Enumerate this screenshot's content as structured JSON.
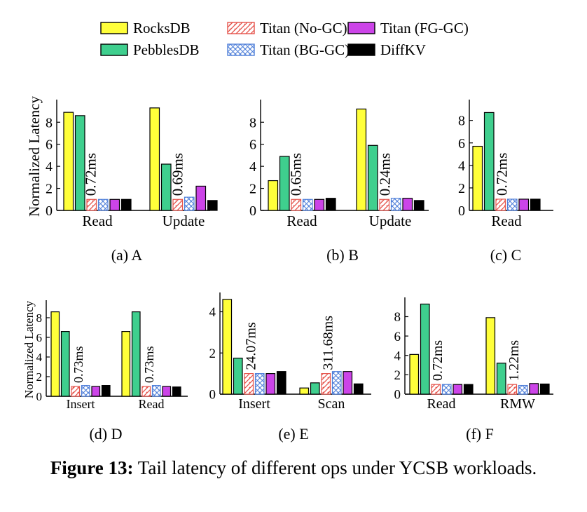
{
  "legend": [
    {
      "name": "RocksDB",
      "key": "rocks"
    },
    {
      "name": "PebblesDB",
      "key": "pebbles"
    },
    {
      "name": "Titan (No-GC)",
      "key": "nogc"
    },
    {
      "name": "Titan (BG-GC)",
      "key": "bggc"
    },
    {
      "name": "Titan (FG-GC)",
      "key": "fggc"
    },
    {
      "name": "DiffKV",
      "key": "diffkv"
    }
  ],
  "colors": {
    "rocks": "#ffff3a",
    "pebbles": "#3fcf8e",
    "nogc": "#e5534b",
    "bggc": "#4f7fd9",
    "fggc": "#cc44e8",
    "diffkv": "#000000"
  },
  "figure_caption": {
    "label": "Figure 13:",
    "text": " Tail latency of different ops under YCSB workloads."
  },
  "chart_data": [
    {
      "type": "bar",
      "caption": "(a)  A",
      "ylabel": "Normalized Latency",
      "ylim": [
        0,
        9.8
      ],
      "yticks": [
        0,
        2,
        4,
        6,
        8
      ],
      "categories": [
        "Read",
        "Update"
      ],
      "series": [
        {
          "name": "RocksDB",
          "values": [
            8.9,
            9.3
          ]
        },
        {
          "name": "PebblesDB",
          "values": [
            8.6,
            4.2
          ]
        },
        {
          "name": "Titan (No-GC)",
          "values": [
            1.0,
            1.0
          ]
        },
        {
          "name": "Titan (BG-GC)",
          "values": [
            1.0,
            1.2
          ]
        },
        {
          "name": "Titan (FG-GC)",
          "values": [
            1.0,
            2.2
          ]
        },
        {
          "name": "DiffKV",
          "values": [
            1.0,
            0.9
          ]
        }
      ],
      "annotations": [
        "0.72ms",
        "0.69ms"
      ]
    },
    {
      "type": "bar",
      "caption": "(b)  B",
      "ylabel": "",
      "ylim": [
        0,
        9.8
      ],
      "yticks": [
        0,
        2,
        4,
        6,
        8
      ],
      "categories": [
        "Read",
        "Update"
      ],
      "series": [
        {
          "name": "RocksDB",
          "values": [
            2.7,
            9.2
          ]
        },
        {
          "name": "PebblesDB",
          "values": [
            4.9,
            5.9
          ]
        },
        {
          "name": "Titan (No-GC)",
          "values": [
            1.0,
            1.0
          ]
        },
        {
          "name": "Titan (BG-GC)",
          "values": [
            1.0,
            1.1
          ]
        },
        {
          "name": "Titan (FG-GC)",
          "values": [
            1.0,
            1.1
          ]
        },
        {
          "name": "DiffKV",
          "values": [
            1.1,
            0.9
          ]
        }
      ],
      "annotations": [
        "0.65ms",
        "0.24ms"
      ]
    },
    {
      "type": "bar",
      "caption": "(c)  C",
      "ylabel": "",
      "ylim": [
        0,
        9.6
      ],
      "yticks": [
        0,
        2,
        4,
        6,
        8
      ],
      "categories": [
        "Read"
      ],
      "series": [
        {
          "name": "RocksDB",
          "values": [
            5.7
          ]
        },
        {
          "name": "PebblesDB",
          "values": [
            8.7
          ]
        },
        {
          "name": "Titan (No-GC)",
          "values": [
            1.0
          ]
        },
        {
          "name": "Titan (BG-GC)",
          "values": [
            1.0
          ]
        },
        {
          "name": "Titan (FG-GC)",
          "values": [
            1.0
          ]
        },
        {
          "name": "DiffKV",
          "values": [
            1.0
          ]
        }
      ],
      "annotations": [
        "0.72ms"
      ]
    },
    {
      "type": "bar",
      "caption": "(d)  D",
      "ylabel": "Normalized Latency",
      "ylim": [
        0,
        9.5
      ],
      "yticks": [
        0,
        2,
        4,
        6,
        8
      ],
      "categories": [
        "Insert",
        "Read"
      ],
      "series": [
        {
          "name": "RocksDB",
          "values": [
            8.6,
            6.6
          ]
        },
        {
          "name": "PebblesDB",
          "values": [
            6.6,
            8.6
          ]
        },
        {
          "name": "Titan (No-GC)",
          "values": [
            1.0,
            1.0
          ]
        },
        {
          "name": "Titan (BG-GC)",
          "values": [
            1.1,
            1.1
          ]
        },
        {
          "name": "Titan (FG-GC)",
          "values": [
            1.0,
            1.0
          ]
        },
        {
          "name": "DiffKV",
          "values": [
            1.1,
            0.95
          ]
        }
      ],
      "annotations": [
        "0.73ms",
        "0.73ms"
      ]
    },
    {
      "type": "bar",
      "caption": "(e)  E",
      "ylabel": "",
      "ylim": [
        0,
        4.8
      ],
      "yticks": [
        0,
        2,
        4
      ],
      "categories": [
        "Insert",
        "Scan"
      ],
      "series": [
        {
          "name": "RocksDB",
          "values": [
            4.6,
            0.3
          ]
        },
        {
          "name": "PebblesDB",
          "values": [
            1.75,
            0.55
          ]
        },
        {
          "name": "Titan (No-GC)",
          "values": [
            1.0,
            1.0
          ]
        },
        {
          "name": "Titan (BG-GC)",
          "values": [
            1.0,
            1.1
          ]
        },
        {
          "name": "Titan (FG-GC)",
          "values": [
            1.0,
            1.1
          ]
        },
        {
          "name": "DiffKV",
          "values": [
            1.1,
            0.5
          ]
        }
      ],
      "annotations": [
        "24.07ms",
        "311.68ms"
      ]
    },
    {
      "type": "bar",
      "caption": "(f)  F",
      "ylabel": "",
      "ylim": [
        0,
        9.7
      ],
      "yticks": [
        0,
        2,
        4,
        6,
        8
      ],
      "categories": [
        "Read",
        "RMW"
      ],
      "series": [
        {
          "name": "RocksDB",
          "values": [
            4.1,
            7.9
          ]
        },
        {
          "name": "PebblesDB",
          "values": [
            9.3,
            3.2
          ]
        },
        {
          "name": "Titan (No-GC)",
          "values": [
            1.0,
            1.0
          ]
        },
        {
          "name": "Titan (BG-GC)",
          "values": [
            1.0,
            0.9
          ]
        },
        {
          "name": "Titan (FG-GC)",
          "values": [
            1.0,
            1.1
          ]
        },
        {
          "name": "DiffKV",
          "values": [
            1.0,
            1.05
          ]
        }
      ],
      "annotations": [
        "0.72ms",
        "1.22ms"
      ]
    }
  ]
}
